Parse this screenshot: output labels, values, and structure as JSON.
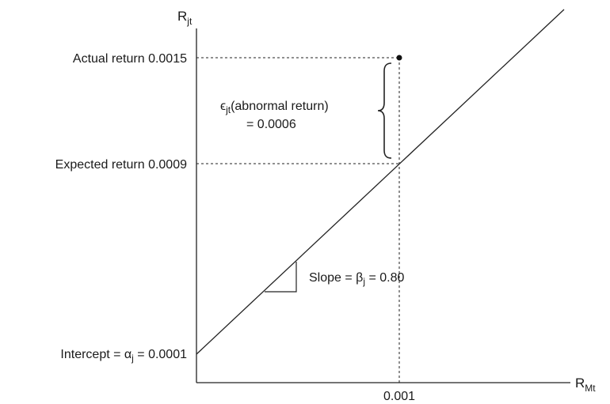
{
  "diagram": {
    "y_axis": {
      "symbol": "R",
      "subscript": "jt"
    },
    "x_axis": {
      "symbol": "R",
      "subscript": "Mt"
    },
    "x_tick": "0.001",
    "actual_return": {
      "prefix": "Actual return ",
      "value": "0.0015"
    },
    "expected_return": {
      "prefix": "Expected return ",
      "value": "0.0009"
    },
    "abnormal": {
      "symbol": "ϵ",
      "subscript": "jt",
      "text": "(abnormal return)",
      "value_line": "= 0.0006"
    },
    "slope": {
      "prefix": "Slope = ",
      "symbol": "β",
      "subscript": "j",
      "suffix": " = 0.80"
    },
    "intercept": {
      "prefix": "Intercept = ",
      "symbol": "α",
      "subscript": "j",
      "suffix": " = 0.0001"
    }
  }
}
